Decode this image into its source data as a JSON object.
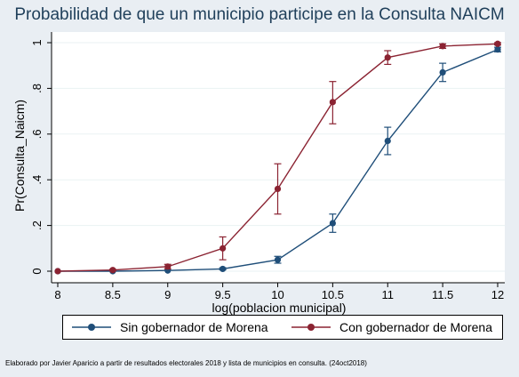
{
  "chart_data": {
    "type": "line",
    "title": "Probabilidad de que un municipio participe en la Consulta NAICM",
    "xlabel": "log(poblacion municipal)",
    "ylabel": "Pr(Consulta_Naicm)",
    "x": [
      8,
      8.5,
      9,
      9.5,
      10,
      10.5,
      11,
      11.5,
      12
    ],
    "x_ticks": [
      "8",
      "8.5",
      "9",
      "9.5",
      "10",
      "10.5",
      "11",
      "11.5",
      "12"
    ],
    "y_ticks": [
      "0",
      ".2",
      ".4",
      ".6",
      ".8",
      "1"
    ],
    "y_tick_values": [
      0,
      0.2,
      0.4,
      0.6,
      0.8,
      1
    ],
    "xlim": [
      8,
      12
    ],
    "ylim": [
      0,
      1
    ],
    "grid": "horizontal",
    "legend_placement": "bottom",
    "series": [
      {
        "name": "Sin gobernador de Morena",
        "color": "#1f4e79",
        "values": [
          0.0,
          0.0,
          0.003,
          0.01,
          0.05,
          0.21,
          0.57,
          0.87,
          0.97
        ],
        "lower": [
          0.0,
          0.0,
          0.001,
          0.006,
          0.035,
          0.17,
          0.51,
          0.83,
          0.96
        ],
        "upper": [
          0.0,
          0.001,
          0.005,
          0.015,
          0.065,
          0.25,
          0.63,
          0.91,
          0.98
        ]
      },
      {
        "name": "Con gobernador de Morena",
        "color": "#8b2332",
        "values": [
          0.0,
          0.005,
          0.02,
          0.1,
          0.36,
          0.74,
          0.935,
          0.985,
          0.995
        ],
        "lower": [
          0.0,
          0.001,
          0.01,
          0.05,
          0.25,
          0.645,
          0.905,
          0.975,
          0.99
        ],
        "upper": [
          0.0,
          0.008,
          0.03,
          0.15,
          0.47,
          0.83,
          0.965,
          0.995,
          1.0
        ]
      }
    ]
  },
  "footnote": "Elaborado por Javier Aparicio a partir de resultados electorales 2018 y lista de municipios en consulta. (24oct2018)"
}
